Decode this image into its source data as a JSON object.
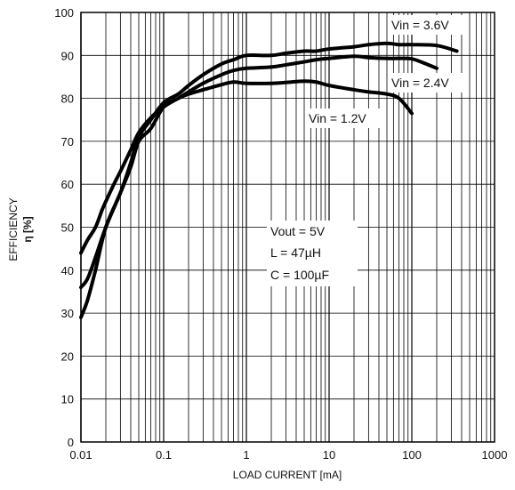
{
  "chart_data": {
    "type": "line",
    "xscale": "log",
    "xlim": [
      0.01,
      1000
    ],
    "ylim": [
      0,
      100
    ],
    "xticks": [
      0.01,
      0.1,
      1,
      10,
      100,
      1000
    ],
    "xtick_labels": [
      "0.01",
      "0.1",
      "1",
      "10",
      "100",
      "1000"
    ],
    "yticks": [
      0,
      10,
      20,
      30,
      40,
      50,
      60,
      70,
      80,
      90,
      100
    ],
    "ytick_labels": [
      "0",
      "10",
      "20",
      "30",
      "40",
      "50",
      "60",
      "70",
      "80",
      "90",
      "100"
    ],
    "grid": true,
    "xlabel": "LOAD CURRENT [mA]",
    "ylabel_line1": "EFFICIENCY",
    "ylabel_line2": "η [%]",
    "annotation_lines": [
      "Vout = 5V",
      "L = 47µH",
      "C = 100µF"
    ],
    "series": [
      {
        "name": "Vin = 3.6V",
        "x": [
          0.01,
          0.012,
          0.015,
          0.02,
          0.03,
          0.04,
          0.05,
          0.07,
          0.1,
          0.15,
          0.2,
          0.3,
          0.5,
          0.7,
          1,
          2,
          3,
          5,
          7,
          10,
          20,
          30,
          50,
          70,
          100,
          200,
          350
        ],
        "y": [
          29,
          33,
          40,
          50,
          58,
          65,
          71,
          75,
          79,
          81,
          83,
          85.5,
          88,
          89,
          90,
          90,
          90.5,
          91,
          91,
          91.5,
          92,
          92.5,
          92.8,
          92.5,
          92.5,
          92.3,
          91
        ]
      },
      {
        "name": "Vin = 2.4V",
        "x": [
          0.01,
          0.012,
          0.015,
          0.02,
          0.03,
          0.04,
          0.05,
          0.07,
          0.1,
          0.15,
          0.2,
          0.3,
          0.5,
          0.7,
          1,
          2,
          3,
          5,
          7,
          10,
          20,
          30,
          50,
          70,
          100,
          150,
          200
        ],
        "y": [
          36,
          38,
          43,
          50,
          58,
          64,
          70,
          73,
          78,
          80,
          81.5,
          83.5,
          85.5,
          86.5,
          87,
          87.3,
          87.8,
          88.5,
          89,
          89.3,
          89.8,
          89.5,
          89.3,
          89.3,
          89.2,
          88,
          87
        ]
      },
      {
        "name": "Vin = 1.2V",
        "x": [
          0.01,
          0.012,
          0.015,
          0.018,
          0.02,
          0.025,
          0.03,
          0.04,
          0.05,
          0.07,
          0.1,
          0.15,
          0.2,
          0.3,
          0.5,
          0.7,
          1,
          2,
          3,
          5,
          7,
          10,
          20,
          30,
          50,
          70,
          100
        ],
        "y": [
          44,
          47,
          50,
          54,
          56,
          60,
          63,
          68,
          72,
          75.5,
          78,
          80,
          81,
          82,
          83.2,
          83.8,
          83.5,
          83.5,
          83.7,
          84,
          83.8,
          83,
          82,
          81.5,
          81,
          80,
          76.5
        ]
      }
    ]
  }
}
